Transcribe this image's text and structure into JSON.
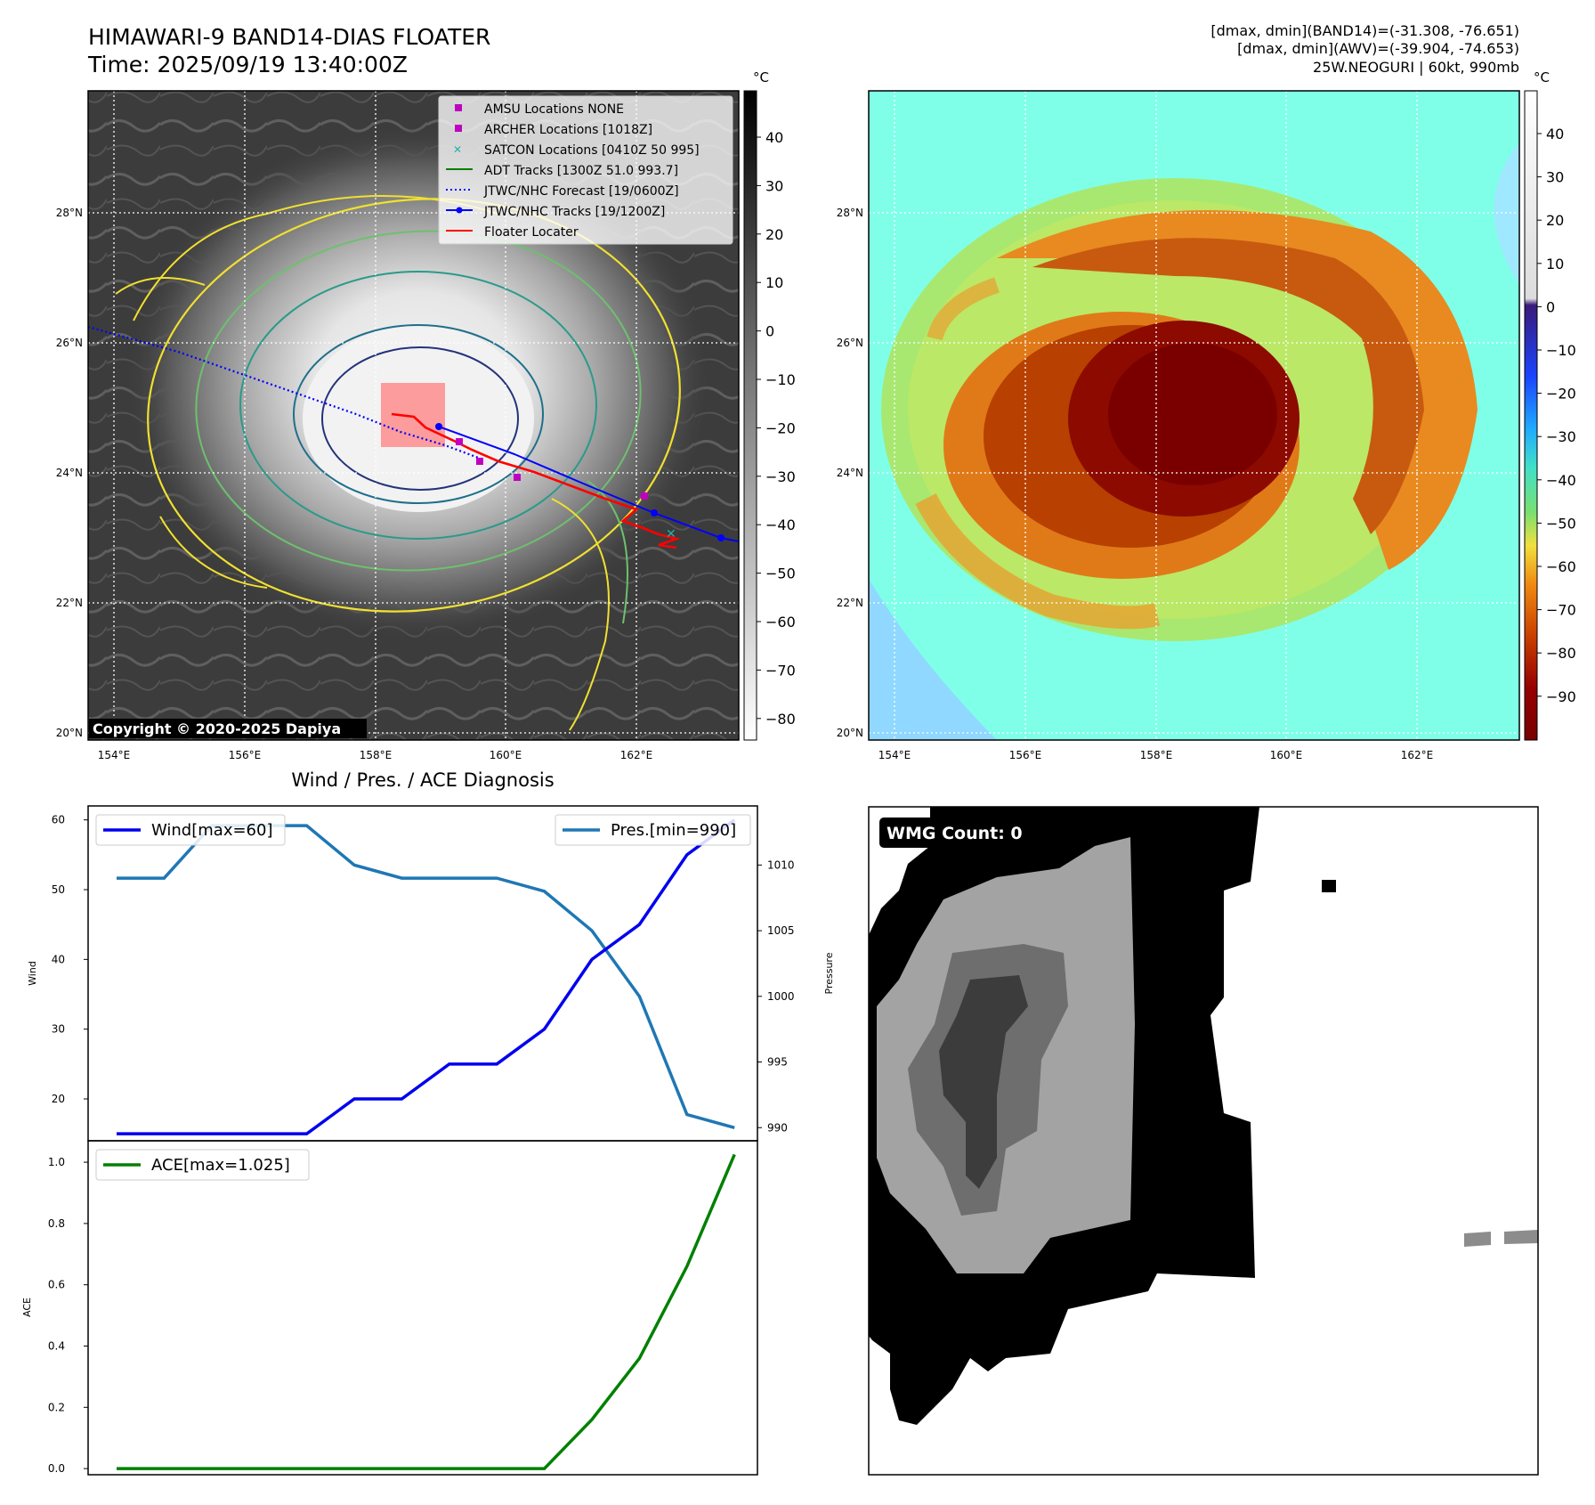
{
  "header": {
    "title_line1": "HIMAWARI-9 BAND14-DIAS FLOATER",
    "title_line2": "Time: 2025/09/19 13:40:00Z",
    "stats_line1": "[dmax, dmin](BAND14)=(-31.308, -76.651)",
    "stats_line2": "[dmax, dmin](AWV)=(-39.904, -74.653)",
    "stats_line3": "25W.NEOGURI | 60kt, 990mb"
  },
  "map": {
    "lon_labels": [
      "154°E",
      "156°E",
      "158°E",
      "160°E",
      "162°E"
    ],
    "lat_labels": [
      "20°N",
      "22°N",
      "24°N",
      "26°N",
      "28°N"
    ],
    "copyright": "Copyright © 2020-2025 Dapiya",
    "legend": [
      {
        "label": "AMSU Locations NONE",
        "symbol": "square",
        "color": "#c000c0"
      },
      {
        "label": "ARCHER Locations [1018Z]",
        "symbol": "square",
        "color": "#c000c0"
      },
      {
        "label": "SATCON Locations [0410Z 50 995]",
        "symbol": "x",
        "color": "#20b2aa"
      },
      {
        "label": "ADT Tracks [1300Z 51.0 993.7]",
        "symbol": "line",
        "color": "#008000"
      },
      {
        "label": "JTWC/NHC Forecast [19/0600Z]",
        "symbol": "dotted",
        "color": "#0000ff"
      },
      {
        "label": "JTWC/NHC Tracks [19/1200Z]",
        "symbol": "line-dot",
        "color": "#0000ff"
      },
      {
        "label": "Floater Locater",
        "symbol": "line",
        "color": "#ff0000"
      }
    ]
  },
  "colorbar_ir": {
    "unit": "°C",
    "ticks": [
      "40",
      "30",
      "20",
      "10",
      "0",
      "−10",
      "−20",
      "−30",
      "−40",
      "−50",
      "−60",
      "−70",
      "−80"
    ]
  },
  "colorbar_wv": {
    "unit": "°C",
    "ticks": [
      "40",
      "30",
      "20",
      "10",
      "0",
      "−10",
      "−20",
      "−30",
      "−40",
      "−50",
      "−60",
      "−70",
      "−80",
      "−90"
    ]
  },
  "diagnosis": {
    "title": "Wind / Pres. / ACE Diagnosis",
    "wind_ylabel": "Wind",
    "pres_ylabel": "Pressure",
    "ace_ylabel": "ACE",
    "wind_legend": "Wind[max=60]",
    "pres_legend": "Pres.[min=990]",
    "ace_legend": "ACE[max=1.025]",
    "wind_ticks": [
      "20",
      "30",
      "40",
      "50",
      "60"
    ],
    "pres_ticks": [
      "990",
      "995",
      "1000",
      "1005",
      "1010"
    ],
    "ace_ticks": [
      "0.0",
      "0.2",
      "0.4",
      "0.6",
      "0.8",
      "1.0"
    ]
  },
  "wmg": {
    "label": "WMG Count: 0"
  },
  "colors": {
    "wind": "#0000ee",
    "pressure": "#1f77b4",
    "ace": "#008000",
    "floater": "#ff0000"
  },
  "chart_data": [
    {
      "type": "line",
      "title": "Wind / Pres. / ACE Diagnosis",
      "x": [
        0,
        1,
        2,
        3,
        4,
        5,
        6,
        7,
        8,
        9,
        10,
        11,
        12,
        13
      ],
      "series": [
        {
          "name": "Wind[max=60]",
          "axis": "left",
          "values": [
            15,
            15,
            15,
            15,
            15,
            20,
            20,
            25,
            25,
            30,
            40,
            45,
            55,
            60
          ],
          "ylim": [
            14,
            62
          ]
        },
        {
          "name": "Pres.[min=990]",
          "axis": "right",
          "values": [
            1009,
            1009,
            1013,
            1013,
            1013,
            1010,
            1009,
            1009,
            1009,
            1008,
            1005,
            1000,
            991,
            990
          ],
          "ylim": [
            989,
            1014.5
          ]
        }
      ]
    },
    {
      "type": "line",
      "series": [
        {
          "name": "ACE[max=1.025]",
          "values": [
            0,
            0,
            0,
            0,
            0,
            0,
            0,
            0,
            0,
            0,
            0.16,
            0.36,
            0.66,
            1.025
          ],
          "ylim": [
            -0.02,
            1.07
          ]
        }
      ]
    }
  ]
}
